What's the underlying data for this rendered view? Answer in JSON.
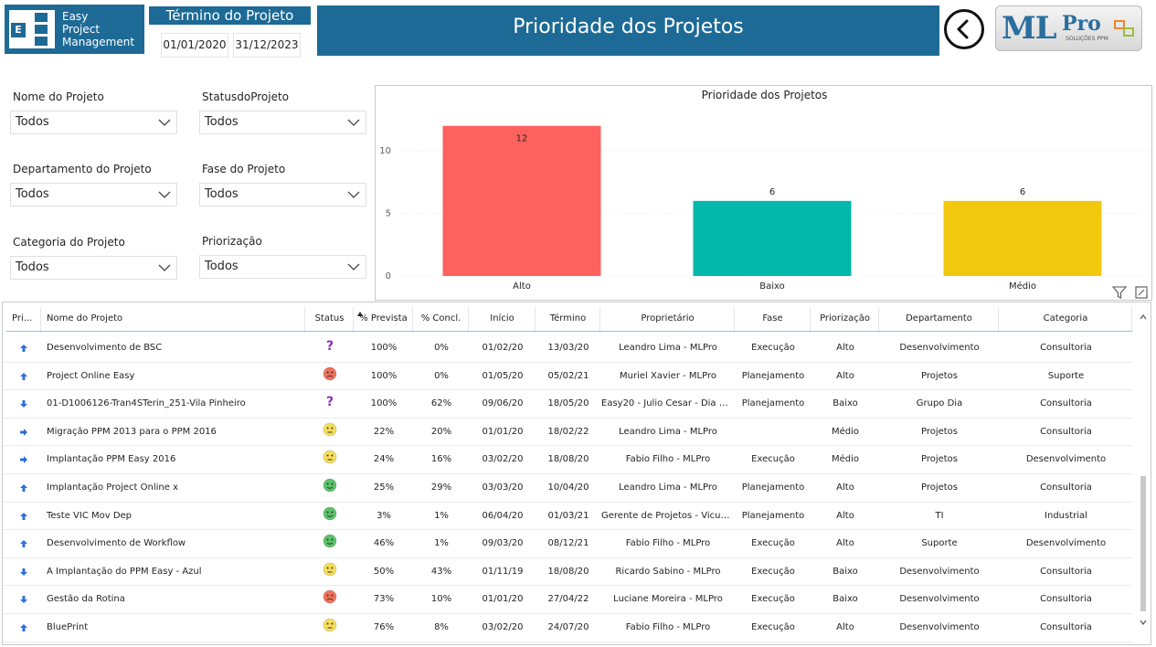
{
  "header": {
    "logo_lines": [
      "Easy",
      "Project",
      "Management"
    ],
    "logo_letters": [
      "E"
    ],
    "termino_title": "Término do Projeto",
    "date_start": "01/01/2020",
    "date_end": "31/12/2023",
    "page_title": "Prioridade dos Projetos",
    "brand_ml": "ML",
    "brand_pro": "Pro",
    "brand_sub": "SOLUÇÕES PPM"
  },
  "filters": [
    {
      "label": "Nome do Projeto",
      "value": "Todos"
    },
    {
      "label": "StatusdoProjeto",
      "value": "Todos"
    },
    {
      "label": "Departamento do Projeto",
      "value": "Todos"
    },
    {
      "label": "Fase do Projeto",
      "value": "Todos"
    },
    {
      "label": "Categoria do Projeto",
      "value": "Todos"
    },
    {
      "label": "Priorização",
      "value": "Todos"
    }
  ],
  "chart_data": {
    "type": "bar",
    "title": "Prioridade dos Projetos",
    "categories": [
      "Alto",
      "Baixo",
      "Médio"
    ],
    "values": [
      12,
      6,
      6
    ],
    "colors": [
      "#fd625e",
      "#01b8aa",
      "#f2c80f"
    ],
    "ylim": [
      0,
      13
    ],
    "yticks": [
      0,
      5,
      10
    ],
    "grid": true,
    "legend": "none"
  },
  "table": {
    "columns": [
      "Pri...",
      "Nome do Projeto",
      "Status",
      "% Prevista",
      "% Concl.",
      "Início",
      "Término",
      "Proprietário",
      "Fase",
      "Priorização",
      "Departamento",
      "Categoria"
    ],
    "rows": [
      {
        "arrow": "up",
        "nome": "Desenvolvimento de BSC",
        "status": "question",
        "prevista": "100%",
        "concl": "0%",
        "inicio": "01/02/20",
        "termino": "13/03/20",
        "proprietario": "Leandro Lima - MLPro",
        "fase": "Execução",
        "priorizacao": "Alto",
        "departamento": "Desenvolvimento",
        "categoria": "Consultoria"
      },
      {
        "arrow": "up",
        "nome": "Project Online Easy",
        "status": "red",
        "prevista": "100%",
        "concl": "0%",
        "inicio": "01/05/20",
        "termino": "05/02/21",
        "proprietario": "Muriel Xavier - MLPro",
        "fase": "Planejamento",
        "priorizacao": "Alto",
        "departamento": "Projetos",
        "categoria": "Suporte"
      },
      {
        "arrow": "down",
        "nome": "01-D1006126-Tran4STerin_251-Vila Pinheiro",
        "status": "question",
        "prevista": "100%",
        "concl": "62%",
        "inicio": "09/06/20",
        "termino": "18/05/20",
        "proprietario": "Easy20 - Julio Cesar - Dia G...",
        "fase": "Planejamento",
        "priorizacao": "Baixo",
        "departamento": "Grupo Dia",
        "categoria": "Consultoria"
      },
      {
        "arrow": "right",
        "nome": "Migração PPM 2013 para o PPM 2016",
        "status": "yellow",
        "prevista": "22%",
        "concl": "20%",
        "inicio": "01/01/20",
        "termino": "18/02/22",
        "proprietario": "Leandro Lima - MLPro",
        "fase": "",
        "priorizacao": "Médio",
        "departamento": "Projetos",
        "categoria": "Consultoria"
      },
      {
        "arrow": "right",
        "nome": "Implantação PPM Easy 2016",
        "status": "yellow",
        "prevista": "24%",
        "concl": "16%",
        "inicio": "03/02/20",
        "termino": "18/08/20",
        "proprietario": "Fabio Filho - MLPro",
        "fase": "Execução",
        "priorizacao": "Médio",
        "departamento": "Projetos",
        "categoria": "Desenvolvimento"
      },
      {
        "arrow": "up",
        "nome": "Implantação Project Online x",
        "status": "green",
        "prevista": "25%",
        "concl": "29%",
        "inicio": "03/03/20",
        "termino": "10/04/20",
        "proprietario": "Leandro Lima - MLPro",
        "fase": "Planejamento",
        "priorizacao": "Alto",
        "departamento": "Projetos",
        "categoria": "Consultoria"
      },
      {
        "arrow": "up",
        "nome": "Teste VIC Mov Dep",
        "status": "green",
        "prevista": "3%",
        "concl": "1%",
        "inicio": "06/04/20",
        "termino": "01/03/21",
        "proprietario": "Gerente de Projetos - Vicun...",
        "fase": "Planejamento",
        "priorizacao": "Alto",
        "departamento": "TI",
        "categoria": "Industrial"
      },
      {
        "arrow": "up",
        "nome": "Desenvolvimento de Workflow",
        "status": "green",
        "prevista": "46%",
        "concl": "1%",
        "inicio": "09/03/20",
        "termino": "08/12/21",
        "proprietario": "Fabio Filho - MLPro",
        "fase": "Execução",
        "priorizacao": "Alto",
        "departamento": "Suporte",
        "categoria": "Desenvolvimento"
      },
      {
        "arrow": "down",
        "nome": "A Implantação do PPM Easy - Azul",
        "status": "yellow",
        "prevista": "50%",
        "concl": "43%",
        "inicio": "01/11/19",
        "termino": "18/08/20",
        "proprietario": "Ricardo Sabino - MLPro",
        "fase": "Execução",
        "priorizacao": "Baixo",
        "departamento": "Desenvolvimento",
        "categoria": "Consultoria"
      },
      {
        "arrow": "down",
        "nome": "Gestão da Rotina",
        "status": "red",
        "prevista": "73%",
        "concl": "10%",
        "inicio": "01/01/20",
        "termino": "27/04/22",
        "proprietario": "Luciane Moreira - MLPro",
        "fase": "Execução",
        "priorizacao": "Baixo",
        "departamento": "Desenvolvimento",
        "categoria": "Consultoria"
      },
      {
        "arrow": "up",
        "nome": "BluePrint",
        "status": "yellow",
        "prevista": "76%",
        "concl": "8%",
        "inicio": "03/02/20",
        "termino": "24/07/20",
        "proprietario": "Fabio Filho - MLPro",
        "fase": "Execução",
        "priorizacao": "Alto",
        "departamento": "Desenvolvimento",
        "categoria": "Consultoria"
      }
    ]
  }
}
